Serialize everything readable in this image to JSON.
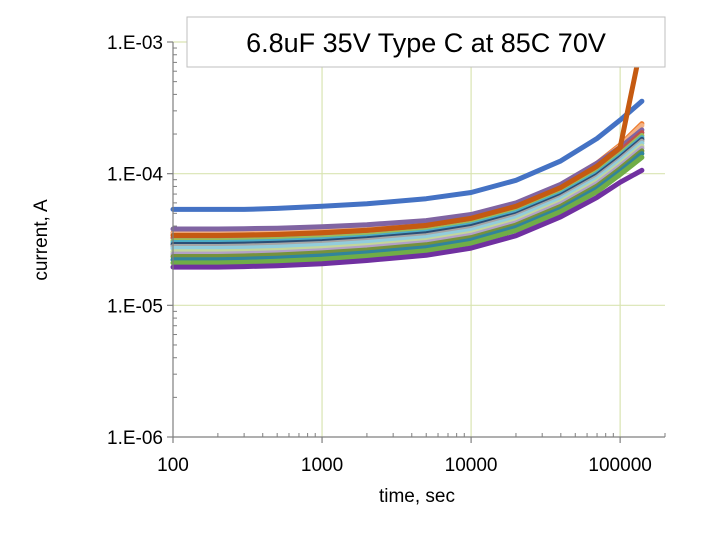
{
  "chart_data": {
    "type": "line",
    "title": "6.8uF 35V Type C at 85C 70V",
    "xlabel": "time, sec",
    "ylabel": "current, A",
    "x_scale": "log",
    "y_scale": "log",
    "xlim": [
      100,
      200000
    ],
    "ylim": [
      1e-06,
      0.001
    ],
    "x_ticks": [
      100,
      1000,
      10000,
      100000
    ],
    "x_tick_labels": [
      "100",
      "1000",
      "10000",
      "100000"
    ],
    "y_ticks": [
      1e-06,
      1e-05,
      0.0001,
      0.001
    ],
    "y_tick_labels": [
      "1.E-06",
      "1.E-05",
      "1.E-04",
      "1.E-03"
    ],
    "grid": true,
    "legend": "none",
    "x": [
      100,
      200,
      300,
      500,
      1000,
      2000,
      5000,
      10000,
      20000,
      40000,
      70000,
      100000,
      140000
    ],
    "series": [
      {
        "color": "#4472C4",
        "values": [
          5.35e-05,
          5.35e-05,
          5.35e-05,
          5.45e-05,
          5.65e-05,
          5.9e-05,
          6.45e-05,
          7.2e-05,
          8.9e-05,
          0.000125,
          0.000185,
          0.000255,
          0.000355
        ]
      },
      {
        "color": "#ED7D31",
        "values": [
          3.55e-05,
          3.55e-05,
          3.57e-05,
          3.62e-05,
          3.75e-05,
          3.9e-05,
          4.25e-05,
          4.8e-05,
          5.9e-05,
          8.2e-05,
          0.00012,
          0.000165,
          0.00024
        ]
      },
      {
        "color": "#F4B183",
        "values": [
          3.5e-05,
          3.52e-05,
          3.55e-05,
          3.6e-05,
          3.72e-05,
          3.88e-05,
          4.22e-05,
          4.75e-05,
          5.85e-05,
          8.1e-05,
          0.000118,
          0.000162,
          0.000232
        ]
      },
      {
        "color": "#8064A2",
        "values": [
          3.8e-05,
          3.8e-05,
          3.82e-05,
          3.85e-05,
          3.95e-05,
          4.1e-05,
          4.4e-05,
          4.9e-05,
          6e-05,
          8.3e-05,
          0.00012,
          0.000158,
          0.000215
        ]
      },
      {
        "color": "#C0504D",
        "values": [
          3.25e-05,
          3.25e-05,
          3.27e-05,
          3.3e-05,
          3.4e-05,
          3.55e-05,
          3.85e-05,
          4.35e-05,
          5.4e-05,
          7.5e-05,
          0.000108,
          0.000148,
          0.000205
        ]
      },
      {
        "color": "#9BBB59",
        "values": [
          3.1e-05,
          3.1e-05,
          3.12e-05,
          3.16e-05,
          3.25e-05,
          3.4e-05,
          3.7e-05,
          4.2e-05,
          5.2e-05,
          7.2e-05,
          0.000103,
          0.00014,
          0.000195
        ]
      },
      {
        "color": "#4BACC6",
        "values": [
          3e-05,
          3e-05,
          3.02e-05,
          3.06e-05,
          3.15e-05,
          3.3e-05,
          3.6e-05,
          4.08e-05,
          5.05e-05,
          7e-05,
          0.0001,
          0.000136,
          0.000188
        ]
      },
      {
        "color": "#2C4D75",
        "values": [
          2.9e-05,
          2.9e-05,
          2.92e-05,
          2.96e-05,
          3.05e-05,
          3.2e-05,
          3.5e-05,
          3.96e-05,
          4.9e-05,
          6.8e-05,
          9.7e-05,
          0.000132,
          0.000182
        ]
      },
      {
        "color": "#A5A5A5",
        "values": [
          2.8e-05,
          2.8e-05,
          2.82e-05,
          2.86e-05,
          2.95e-05,
          3.1e-05,
          3.38e-05,
          3.83e-05,
          4.75e-05,
          6.6e-05,
          9.4e-05,
          0.000128,
          0.000176
        ]
      },
      {
        "color": "#92CDDC",
        "values": [
          2.7e-05,
          2.7e-05,
          2.72e-05,
          2.76e-05,
          2.85e-05,
          3e-05,
          3.27e-05,
          3.7e-05,
          4.6e-05,
          6.4e-05,
          9.1e-05,
          0.000124,
          0.00017
        ]
      },
      {
        "color": "#C3D69B",
        "values": [
          2.55e-05,
          2.55e-05,
          2.57e-05,
          2.61e-05,
          2.7e-05,
          2.84e-05,
          3.1e-05,
          3.52e-05,
          4.38e-05,
          6.1e-05,
          8.7e-05,
          0.000118,
          0.000162
        ]
      },
      {
        "color": "#B2A1C7",
        "values": [
          2.45e-05,
          2.45e-05,
          2.47e-05,
          2.51e-05,
          2.6e-05,
          2.74e-05,
          3e-05,
          3.4e-05,
          4.23e-05,
          5.9e-05,
          8.4e-05,
          0.000114,
          0.000156
        ]
      },
      {
        "color": "#76923C",
        "values": [
          2.35e-05,
          2.35e-05,
          2.37e-05,
          2.41e-05,
          2.5e-05,
          2.63e-05,
          2.88e-05,
          3.27e-05,
          4.07e-05,
          5.65e-05,
          8.05e-05,
          0.000109,
          0.000149
        ]
      },
      {
        "color": "#31849B",
        "values": [
          2.22e-05,
          2.22e-05,
          2.24e-05,
          2.28e-05,
          2.37e-05,
          2.5e-05,
          2.74e-05,
          3.12e-05,
          3.9e-05,
          5.4e-05,
          7.7e-05,
          0.000104,
          0.000142
        ]
      },
      {
        "color": "#70AD47",
        "values": [
          2.1e-05,
          2.1e-05,
          2.12e-05,
          2.16e-05,
          2.24e-05,
          2.37e-05,
          2.6e-05,
          2.96e-05,
          3.7e-05,
          5.15e-05,
          7.3e-05,
          9.85e-05,
          0.000133
        ]
      },
      {
        "color": "#7030A0",
        "values": [
          1.95e-05,
          1.95e-05,
          1.97e-05,
          2e-05,
          2.07e-05,
          2.19e-05,
          2.4e-05,
          2.72e-05,
          3.38e-05,
          4.7e-05,
          6.6e-05,
          8.6e-05,
          0.000106
        ]
      },
      {
        "color": "#C55A11",
        "values": [
          3.4e-05,
          3.4e-05,
          3.42e-05,
          3.46e-05,
          3.57e-05,
          3.72e-05,
          4.05e-05,
          4.58e-05,
          5.65e-05,
          7.85e-05,
          0.000114,
          0.000158,
          0.001
        ]
      }
    ]
  }
}
